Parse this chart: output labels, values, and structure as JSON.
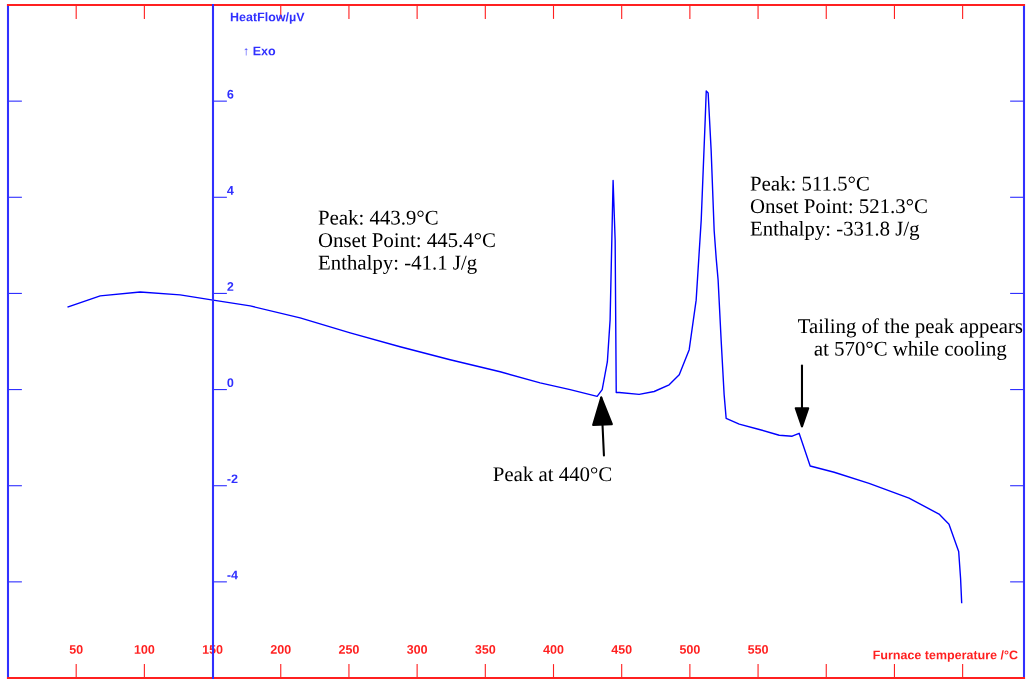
{
  "chart_data": {
    "type": "line",
    "xlabel": "Furnace temperature /°C",
    "ylabel": "HeatFlow/µV",
    "xlim": [
      0,
      745
    ],
    "ylim": [
      -6,
      8
    ],
    "xticks": [
      50,
      100,
      150,
      200,
      250,
      300,
      350,
      400,
      450,
      500,
      550,
      {
        "value": 600,
        "label": null
      },
      {
        "value": 650,
        "label": null
      },
      {
        "value": 700,
        "label": null
      }
    ],
    "yticks": [
      -4,
      -2,
      0,
      2,
      4,
      6
    ],
    "grid": false,
    "series": [
      {
        "color": "#0000ff",
        "x": [
          44.1,
          67.6,
          96.9,
          126.2,
          150.4,
          177.6,
          214.2,
          250.9,
          287.5,
          324.2,
          360.9,
          390.2,
          412.2,
          432,
          435.7,
          439.5,
          441.5,
          443.7,
          445.2,
          446,
          448.2,
          462.8,
          473.8,
          484.8,
          492.2,
          499.5,
          504.6,
          508.3,
          511.2,
          512,
          513.4,
          515.6,
          517.8,
          519.3,
          520.7,
          522.9,
          525.1,
          526.6,
          536.2,
          550.9,
          565.5,
          575,
          580.1,
          588.2,
          605.8,
          631.4,
          660.7,
          682.7,
          690,
          697.1,
          698.5,
          699.3
        ],
        "values": [
          1.72,
          1.95,
          2.03,
          1.97,
          1.86,
          1.74,
          1.49,
          1.18,
          0.89,
          0.62,
          0.37,
          0.14,
          0,
          -0.14,
          0,
          0.58,
          1.45,
          4.35,
          3.1,
          -0.06,
          -0.06,
          -0.1,
          -0.04,
          0.1,
          0.31,
          0.83,
          1.86,
          3.52,
          5.59,
          6.21,
          6.17,
          4.97,
          3.31,
          2.73,
          2.28,
          1.04,
          -0.1,
          -0.6,
          -0.72,
          -0.83,
          -0.95,
          -0.97,
          -0.91,
          -1.59,
          -1.72,
          -1.95,
          -2.26,
          -2.59,
          -2.8,
          -3.37,
          -3.93,
          -4.43
        ]
      }
    ],
    "annotations": [
      "↑ Exo",
      "Peak: 443.9°C\nOnset Point: 445.4°C\nEnthalpy: -41.1 J/g",
      "Peak: 511.5°C\nOnset Point: 521.3°C\nEnthalpy: -331.8 J/g",
      {
        "text": "Tailing of the peak appears\nat 570°C while cooling",
        "x": 582.2,
        "y": -0.83
      },
      {
        "text": "Peak at 440°C",
        "x": 434.9,
        "y": -0.1
      }
    ]
  }
}
